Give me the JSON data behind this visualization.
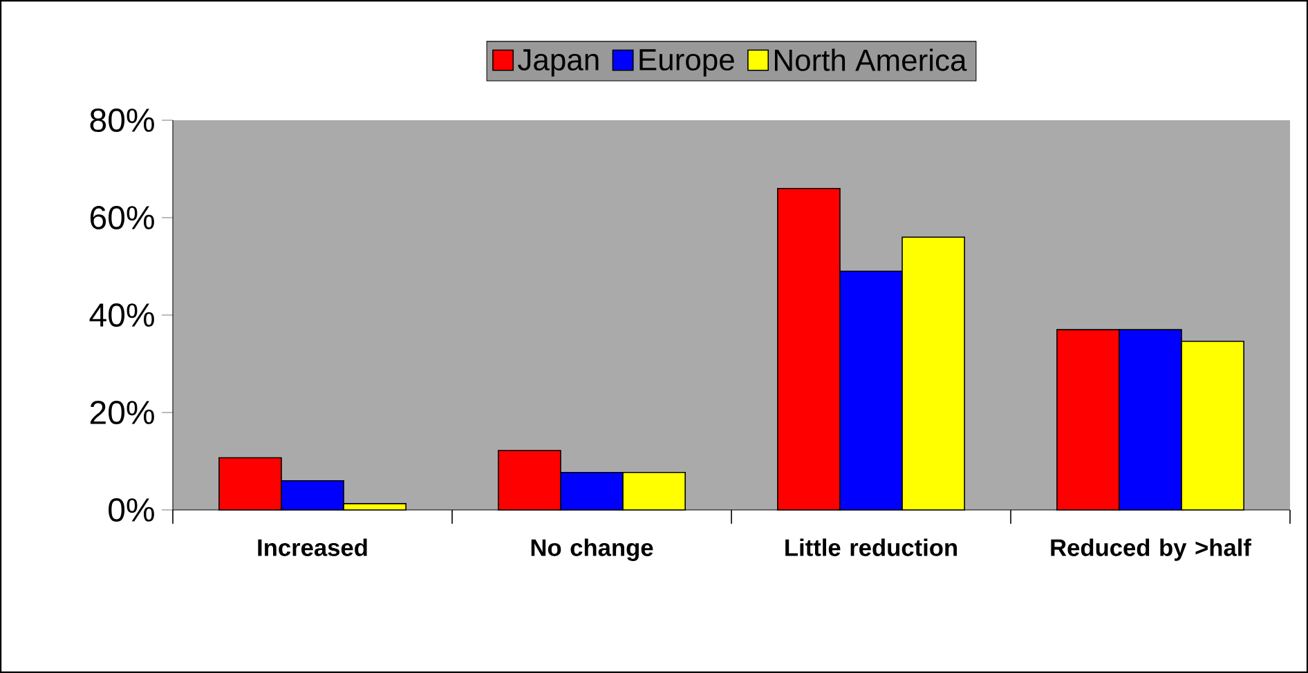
{
  "chart_data": {
    "type": "bar",
    "categories": [
      "Increased",
      "No change",
      "Little reduction",
      "Reduced by >half"
    ],
    "series": [
      {
        "name": "Japan",
        "color": "#ff0000",
        "values": [
          10.7,
          12.2,
          66,
          37
        ]
      },
      {
        "name": "Europe",
        "color": "#0000ff",
        "values": [
          6,
          7.7,
          49,
          37
        ]
      },
      {
        "name": "North America",
        "color": "#ffff00",
        "values": [
          1.3,
          7.7,
          56,
          34.6
        ]
      }
    ],
    "ylim": [
      0,
      80
    ],
    "yticks": [
      {
        "value": 0,
        "label": "0%"
      },
      {
        "value": 20,
        "label": "20%"
      },
      {
        "value": 40,
        "label": "40%"
      },
      {
        "value": 60,
        "label": "60%"
      },
      {
        "value": 80,
        "label": "80%"
      }
    ],
    "legend": "top"
  }
}
